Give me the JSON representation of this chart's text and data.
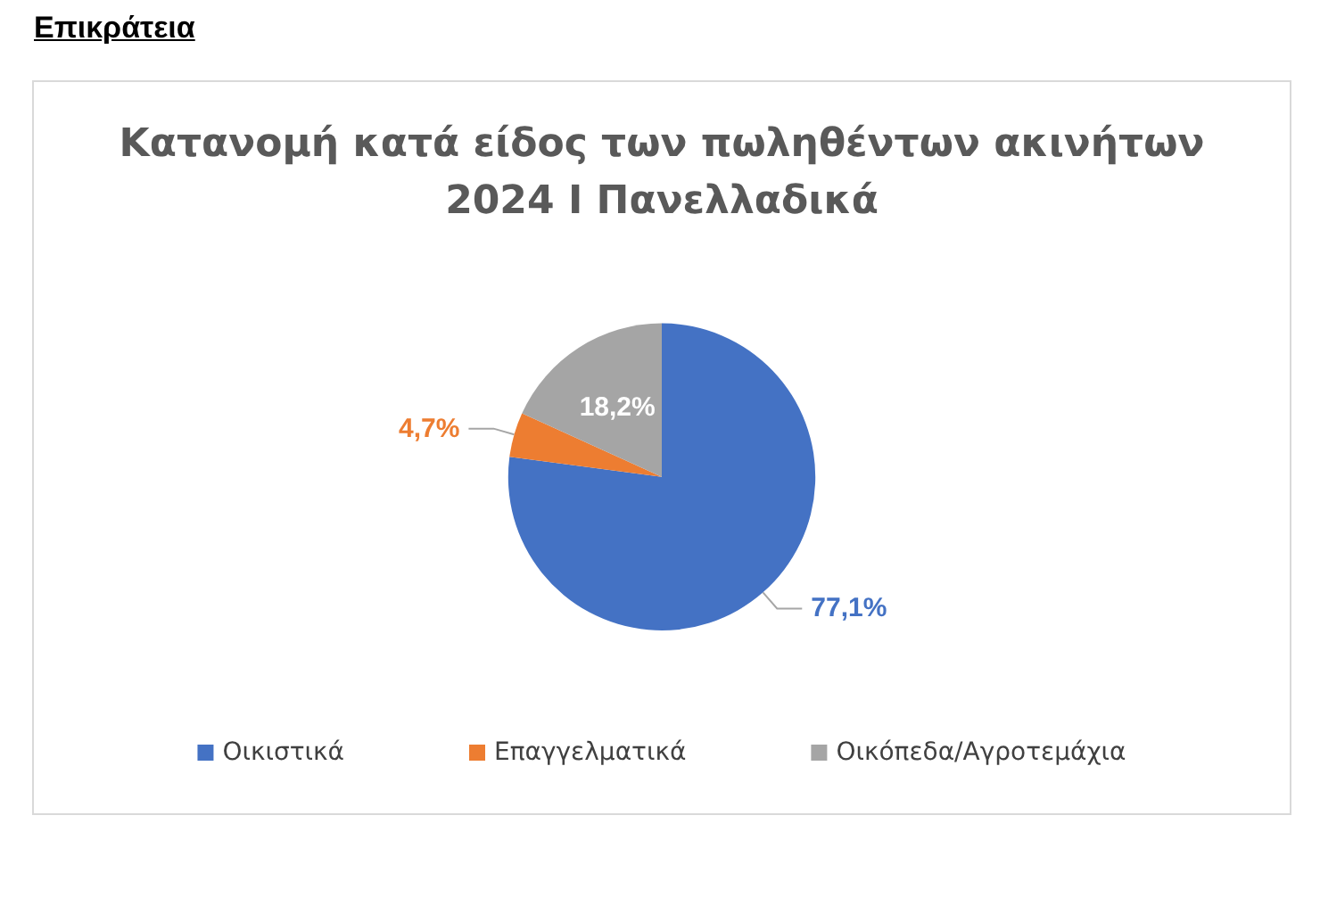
{
  "chart_data": {
    "type": "pie",
    "title": "Κατανομή κατά είδος των πωληθέντων ακινήτων\n2024 Ι Πανελλαδικά",
    "annotations": [
      "Επικράτεια"
    ],
    "categories": [
      "Οικιστικά",
      "Επαγγελματικά",
      "Οικόπεδα/Αγροτεμάχια"
    ],
    "values": [
      77.1,
      4.7,
      18.2
    ],
    "colors": [
      "#4472c4",
      "#ed7d31",
      "#a5a5a5"
    ],
    "value_labels": [
      "77,1%",
      "4,7%",
      "18,2%"
    ],
    "legend": "bottom"
  }
}
